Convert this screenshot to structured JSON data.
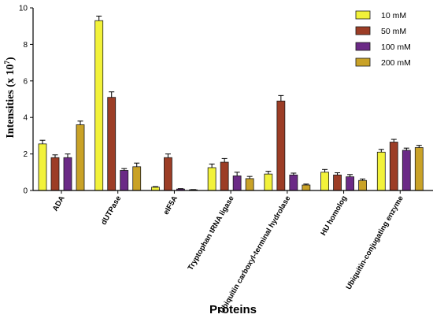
{
  "chart_data": {
    "type": "bar",
    "xlabel": "Proteins",
    "ylabel": "Intensities (x 10",
    "ylabel_exponent": "7",
    "ylabel_close": ")",
    "ylim": [
      0,
      10
    ],
    "yticks": [
      "0",
      "2",
      "4",
      "6",
      "8",
      "10"
    ],
    "legend_position": "top-right",
    "categories": [
      "ADA",
      "dUTPase",
      "eIF5A",
      "Tryptophan tRNA ligase",
      "Ubiquitin carboxyl-terminal hydrolase",
      "HU homolog",
      "Ubiquitin-conjugating enzyme"
    ],
    "series": [
      {
        "name": "10 mM",
        "color": "#f2f23a",
        "values": [
          2.55,
          9.3,
          0.18,
          1.25,
          0.9,
          1.0,
          2.1
        ],
        "errors": [
          0.2,
          0.25,
          0.03,
          0.2,
          0.15,
          0.15,
          0.15
        ]
      },
      {
        "name": "50 mM",
        "color": "#9c3d26",
        "values": [
          1.8,
          5.1,
          1.8,
          1.55,
          4.9,
          0.85,
          2.65
        ],
        "errors": [
          0.15,
          0.3,
          0.2,
          0.2,
          0.3,
          0.12,
          0.15
        ]
      },
      {
        "name": "100 mM",
        "color": "#6b2a86",
        "values": [
          1.8,
          1.1,
          0.08,
          0.8,
          0.85,
          0.75,
          2.2
        ],
        "errors": [
          0.2,
          0.1,
          0.02,
          0.2,
          0.1,
          0.12,
          0.12
        ]
      },
      {
        "name": "200 mM",
        "color": "#c9a227",
        "values": [
          3.6,
          1.3,
          0.04,
          0.65,
          0.3,
          0.55,
          2.35
        ],
        "errors": [
          0.2,
          0.2,
          0.01,
          0.12,
          0.05,
          0.08,
          0.12
        ]
      }
    ]
  }
}
